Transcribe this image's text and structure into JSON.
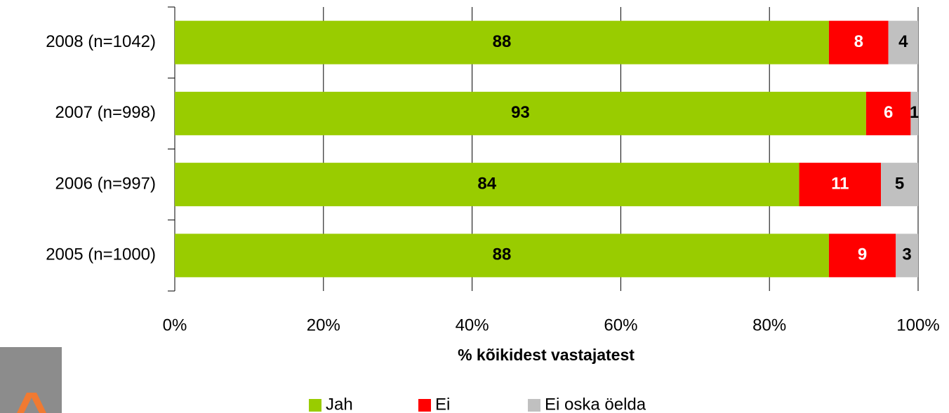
{
  "chart_data": {
    "type": "stacked_barh",
    "categories": [
      "2008 (n=1042)",
      "2007 (n=998)",
      "2006 (n=997)",
      "2005 (n=1000)"
    ],
    "series": [
      {
        "name": "Jah",
        "color": "#99cc00",
        "label_color": "#000000",
        "values": [
          88,
          93,
          84,
          88
        ]
      },
      {
        "name": "Ei",
        "color": "#ff0000",
        "label_color": "#ffffff",
        "values": [
          8,
          6,
          11,
          9
        ]
      },
      {
        "name": "Ei oska öelda",
        "color": "#c0c0c0",
        "label_color": "#000000",
        "values": [
          4,
          1,
          5,
          3
        ]
      }
    ],
    "xlim": [
      0,
      100
    ],
    "xticks": [
      {
        "value": 0,
        "label": "0%"
      },
      {
        "value": 20,
        "label": "20%"
      },
      {
        "value": 40,
        "label": "40%"
      },
      {
        "value": 60,
        "label": "60%"
      },
      {
        "value": 80,
        "label": "80%"
      },
      {
        "value": 100,
        "label": "100%"
      }
    ],
    "x_label": "% kõikidest vastajatest",
    "grid": true,
    "legend": "bottom"
  }
}
